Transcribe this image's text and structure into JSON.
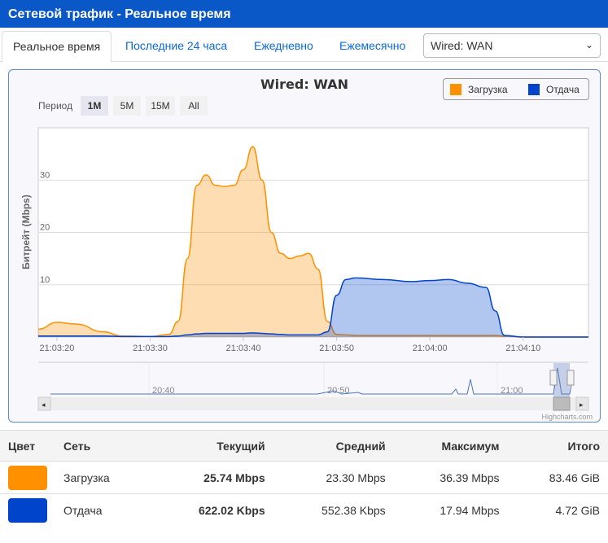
{
  "title": "Сетевой трафик - Реальное время",
  "tabs": [
    {
      "label": "Реальное время",
      "active": true
    },
    {
      "label": "Последние 24 часа"
    },
    {
      "label": "Ежедневно"
    },
    {
      "label": "Ежемесячно"
    }
  ],
  "interface_select": {
    "value": "Wired: WAN"
  },
  "chart_data": {
    "type": "area",
    "title": "Wired: WAN",
    "ylabel": "Битрейт (Mbps)",
    "xlabel": "",
    "ylim": [
      0,
      40
    ],
    "yticks": [
      10,
      20,
      30
    ],
    "xticks": [
      "21:03:20",
      "21:03:30",
      "21:03:40",
      "21:03:50",
      "21:04:00",
      "21:04:10"
    ],
    "xlim": [
      "21:03:18",
      "21:04:17"
    ],
    "grid": true,
    "legend_placement": "top-right",
    "period": {
      "label": "Период",
      "options": [
        "1M",
        "5M",
        "15M",
        "All"
      ],
      "selected": "1M"
    },
    "navigator_ticks": [
      "20:40",
      "20:50",
      "21:00"
    ],
    "credits": "Highcharts.com",
    "x": [
      "21:03:18",
      "21:03:20",
      "21:03:22",
      "21:03:25",
      "21:03:27",
      "21:03:30",
      "21:03:32",
      "21:03:33",
      "21:03:34",
      "21:03:35",
      "21:03:36",
      "21:03:37",
      "21:03:38",
      "21:03:39",
      "21:03:40",
      "21:03:41",
      "21:03:42",
      "21:03:43",
      "21:03:44",
      "21:03:45",
      "21:03:46",
      "21:03:47",
      "21:03:48",
      "21:03:49",
      "21:03:50",
      "21:03:51",
      "21:03:52",
      "21:03:55",
      "21:03:58",
      "21:04:00",
      "21:04:02",
      "21:04:04",
      "21:04:06",
      "21:04:07",
      "21:04:08",
      "21:04:10",
      "21:04:17"
    ],
    "series": [
      {
        "name": "Загрузка",
        "color": "#ff9000",
        "values": [
          1.5,
          2.8,
          2.5,
          1.0,
          0.2,
          0.1,
          0.5,
          3,
          15,
          29,
          31,
          29,
          28.8,
          29,
          32,
          36.4,
          30,
          20,
          16,
          15,
          15.5,
          16,
          13,
          3,
          0.5,
          0.4,
          0.3,
          0.3,
          0.3,
          0.3,
          0.3,
          0.3,
          0.3,
          0.3,
          0.2,
          0,
          0
        ]
      },
      {
        "name": "Отдача",
        "color": "#0044cc",
        "values": [
          0.2,
          0.2,
          0.2,
          0.2,
          0.1,
          0.1,
          0.1,
          0.2,
          0.4,
          0.6,
          0.7,
          0.7,
          0.7,
          0.7,
          0.7,
          0.8,
          0.7,
          0.6,
          0.5,
          0.4,
          0.4,
          0.4,
          0.4,
          1,
          8,
          11,
          11.3,
          11,
          10.6,
          10.8,
          11,
          10.3,
          9.5,
          5,
          0.3,
          0,
          0
        ]
      }
    ]
  },
  "table": {
    "headers": [
      "Цвет",
      "Сеть",
      "Текущий",
      "Средний",
      "Максимум",
      "Итого"
    ],
    "rows": [
      {
        "color": "#ff9000",
        "name": "Загрузка",
        "current": "25.74 Mbps",
        "avg": "23.30 Mbps",
        "max": "36.39 Mbps",
        "total": "83.46 GiB"
      },
      {
        "color": "#0044cc",
        "name": "Отдача",
        "current": "622.02 Kbps",
        "avg": "552.38 Kbps",
        "max": "17.94 Mbps",
        "total": "4.72 GiB"
      }
    ]
  }
}
